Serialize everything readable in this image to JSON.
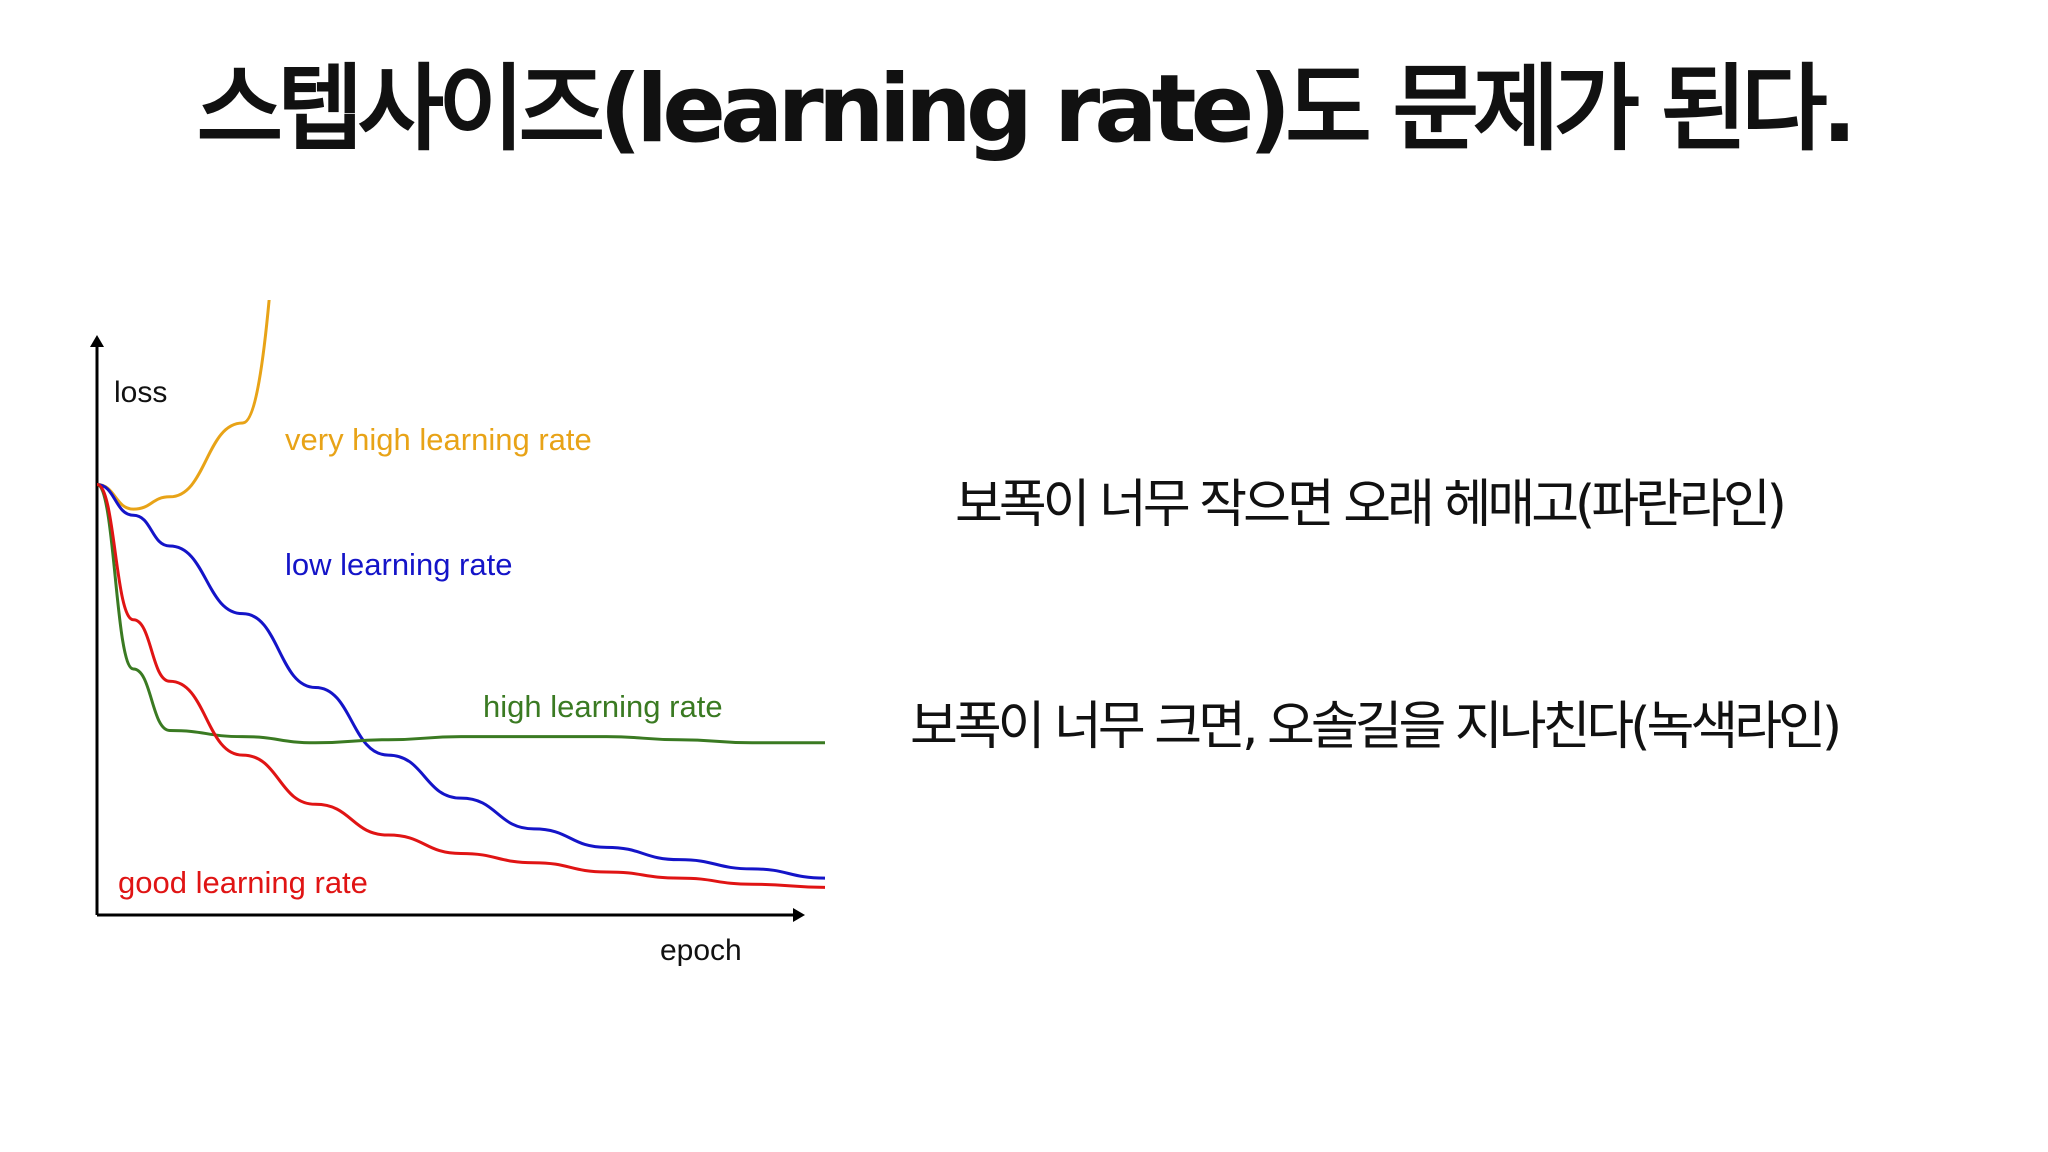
{
  "slide": {
    "title": "스텝사이즈(learning rate)도 문제가 된다.",
    "descriptions": [
      "보폭이 너무 작으면 오래 헤매고(파란라인)",
      "보폭이 너무 크면, 오솔길을 지나친다(녹색라인)"
    ]
  },
  "chart_data": {
    "type": "line",
    "xlabel": "epoch",
    "ylabel": "loss",
    "grid": false,
    "legend": "inline labels",
    "xlim": [
      0,
      100
    ],
    "ylim": [
      0,
      100
    ],
    "x": [
      0,
      5,
      10,
      20,
      30,
      40,
      50,
      60,
      70,
      80,
      90,
      100
    ],
    "series": [
      {
        "name": "very high learning rate",
        "color": "#e8a317",
        "values": [
          70,
          66,
          68,
          80,
          160,
          null,
          null,
          null,
          null,
          null,
          null,
          null
        ]
      },
      {
        "name": "low learning rate",
        "color": "#1414c8",
        "values": [
          70,
          65,
          60,
          49,
          37,
          26,
          19,
          14,
          11,
          9,
          7.5,
          6
        ]
      },
      {
        "name": "high learning rate",
        "color": "#3a7a22",
        "values": [
          70,
          40,
          30,
          29,
          28,
          28.5,
          29,
          29,
          29,
          28.5,
          28,
          28
        ]
      },
      {
        "name": "good learning rate",
        "color": "#e01414",
        "values": [
          70,
          48,
          38,
          26,
          18,
          13,
          10,
          8.5,
          7,
          6,
          5,
          4.5
        ]
      }
    ]
  }
}
